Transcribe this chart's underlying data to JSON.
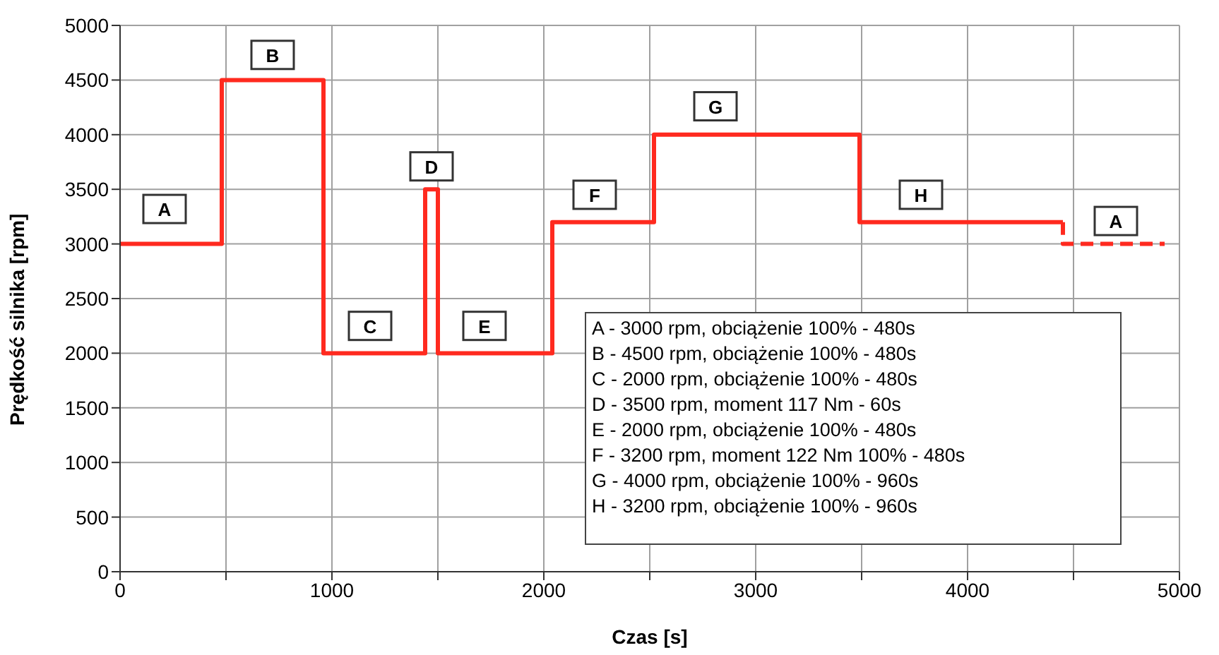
{
  "chart_data": {
    "type": "step",
    "xlabel": "Czas [s]",
    "ylabel": "Prędkość silnika [rpm]",
    "series": [
      {
        "color": "#ff2a1f",
        "line_style": "solid",
        "x": [
          0,
          480,
          960,
          1440,
          1500,
          2040,
          2520,
          3490,
          4450
        ],
        "values": [
          3000,
          4500,
          2000,
          3500,
          2000,
          3200,
          4000,
          3200,
          3200
        ]
      },
      {
        "color": "#ff2a1f",
        "line_style": "dashed",
        "x": [
          4450,
          4450,
          4930
        ],
        "values": [
          3200,
          3000,
          3000
        ]
      }
    ],
    "xlim": [
      0,
      5000
    ],
    "xticks": [
      0,
      {
        "value": 500,
        "label": null
      },
      1000,
      {
        "value": 1500,
        "label": null
      },
      2000,
      {
        "value": 2500,
        "label": null
      },
      3000,
      {
        "value": 3500,
        "label": null
      },
      4000,
      {
        "value": 4500,
        "label": null
      },
      5000
    ],
    "ylim": [
      0,
      5000
    ],
    "yticks": [
      0,
      500,
      1000,
      1500,
      2000,
      2500,
      3000,
      3500,
      4000,
      4500,
      5000
    ],
    "grid": true,
    "marker": "none",
    "annotations": [
      {
        "text": "A",
        "x": 210,
        "y": 3320
      },
      {
        "text": "B",
        "x": 720,
        "y": 4730
      },
      {
        "text": "C",
        "x": 1180,
        "y": 2250
      },
      {
        "text": "D",
        "x": 1470,
        "y": 3710
      },
      {
        "text": "E",
        "x": 1720,
        "y": 2250
      },
      {
        "text": "F",
        "x": 2240,
        "y": 3450
      },
      {
        "text": "G",
        "x": 2810,
        "y": 4260
      },
      {
        "text": "H",
        "x": 3780,
        "y": 3450
      },
      {
        "text": "A",
        "x": 4700,
        "y": 3210
      },
      "A - 3000 rpm, obciążenie 100% - 480s",
      "B - 4500 rpm, obciążenie 100% - 480s",
      "C - 2000 rpm, obciążenie 100% - 480s",
      "D - 3500 rpm, moment 117 Nm - 60s",
      "E - 2000 rpm, obciążenie 100% - 480s",
      "F - 3200 rpm, moment 122 Nm 100% - 480s",
      "G - 4000 rpm, obciążenie 100% - 960s",
      "H - 3200 rpm, obciążenie 100% - 960s"
    ]
  }
}
